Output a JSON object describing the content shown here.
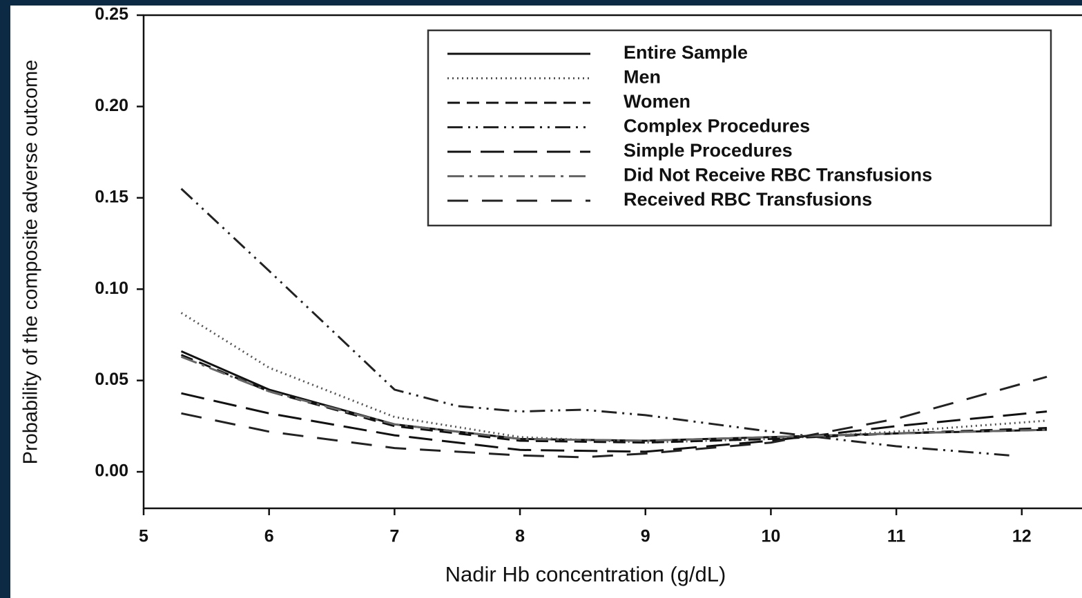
{
  "chart_data": {
    "type": "line",
    "xlabel": "Nadir Hb concentration (g/dL)",
    "ylabel": "Probability of the composite adverse outcome",
    "xlim": [
      5,
      12.48
    ],
    "ylim": [
      -0.02,
      0.25
    ],
    "xticks": [
      5,
      6,
      7,
      8,
      9,
      10,
      11,
      12
    ],
    "yticks": [
      {
        "value": 0,
        "label": "0.00"
      },
      {
        "value": 0.05,
        "label": "0.05"
      },
      {
        "value": 0.1,
        "label": "0.10"
      },
      {
        "value": 0.15,
        "label": "0.15"
      },
      {
        "value": 0.2,
        "label": "0.20"
      },
      {
        "value": 0.25,
        "label": "0.25"
      }
    ],
    "legend": "top-right",
    "series": [
      {
        "name": "Entire Sample",
        "color": "#111111",
        "style": "solid",
        "x": [
          5.3,
          6,
          7,
          8,
          9,
          10,
          11,
          12.2
        ],
        "values": [
          0.066,
          0.045,
          0.026,
          0.018,
          0.017,
          0.019,
          0.021,
          0.023
        ]
      },
      {
        "name": "Men",
        "color": "#555555",
        "style": "dotted",
        "x": [
          5.3,
          6,
          7,
          8,
          9,
          10,
          11,
          12.2
        ],
        "values": [
          0.087,
          0.057,
          0.03,
          0.019,
          0.016,
          0.018,
          0.022,
          0.028
        ]
      },
      {
        "name": "Women",
        "color": "#111111",
        "style": "dashed",
        "x": [
          5.3,
          6,
          7,
          8,
          9,
          10,
          11,
          12.2
        ],
        "values": [
          0.064,
          0.044,
          0.025,
          0.017,
          0.016,
          0.018,
          0.021,
          0.024
        ]
      },
      {
        "name": "Complex Procedures",
        "color": "#222222",
        "style": "dashdotdot",
        "x": [
          5.3,
          6,
          7,
          7.5,
          8,
          8.5,
          9,
          10,
          11,
          11.9
        ],
        "values": [
          0.155,
          0.11,
          0.045,
          0.036,
          0.033,
          0.034,
          0.031,
          0.022,
          0.014,
          0.009
        ]
      },
      {
        "name": "Simple Procedures",
        "color": "#111111",
        "style": "longdash",
        "x": [
          5.3,
          6,
          7,
          8,
          9,
          10,
          11,
          12.2
        ],
        "values": [
          0.043,
          0.032,
          0.02,
          0.012,
          0.011,
          0.017,
          0.025,
          0.033
        ]
      },
      {
        "name": "Did Not Receive RBC Transfusions",
        "color": "#666666",
        "style": "dashdot",
        "x": [
          5.3,
          6,
          7,
          8,
          9,
          10,
          11,
          12.2
        ],
        "values": [
          0.063,
          0.044,
          0.026,
          0.018,
          0.017,
          0.019,
          0.021,
          0.023
        ]
      },
      {
        "name": "Received RBC Transfusions",
        "color": "#222222",
        "style": "longdash2",
        "x": [
          5.3,
          6,
          7,
          8,
          8.5,
          9,
          10,
          11,
          12.2
        ],
        "values": [
          0.032,
          0.022,
          0.013,
          0.009,
          0.008,
          0.01,
          0.016,
          0.029,
          0.052
        ]
      }
    ]
  }
}
